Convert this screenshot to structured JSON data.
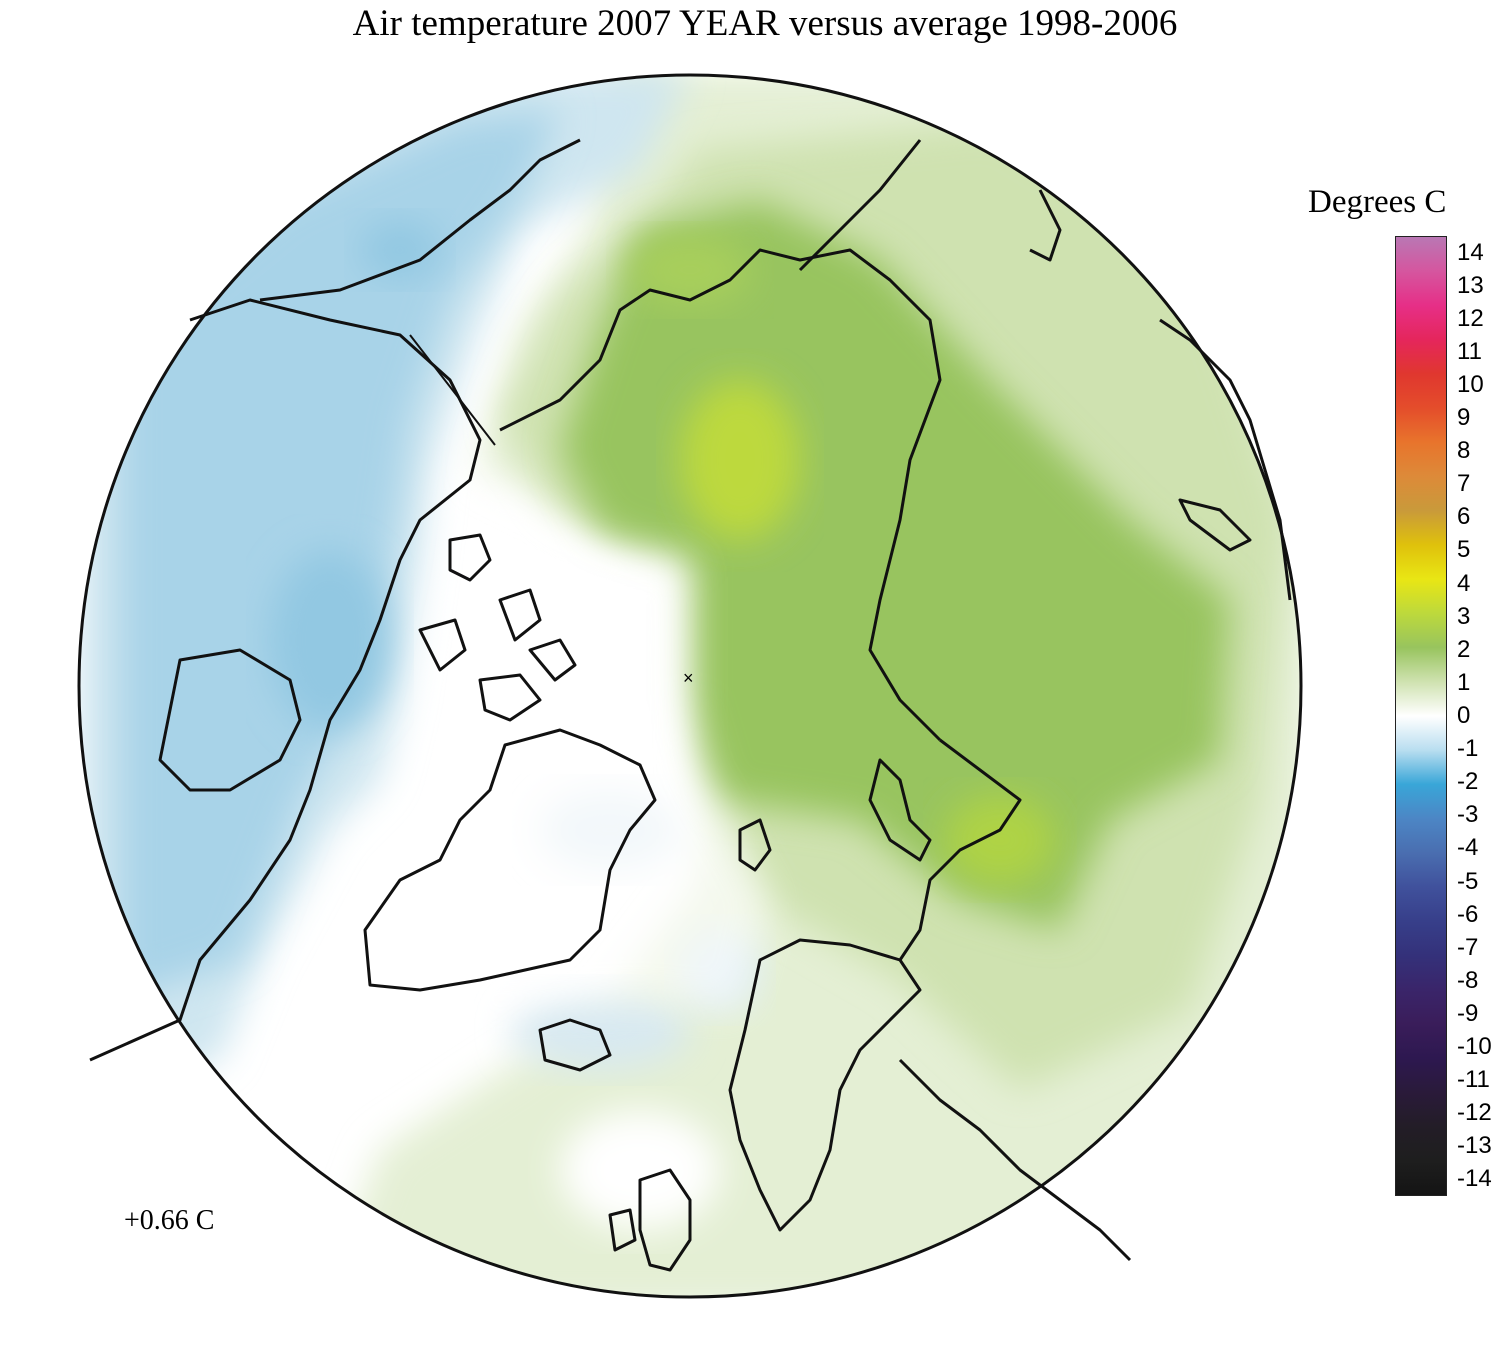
{
  "title": "Air temperature 2007 YEAR versus average 1998-2006",
  "legend": {
    "title": "Degrees C",
    "ticks": [
      "14",
      "13",
      "12",
      "11",
      "10",
      "9",
      "8",
      "7",
      "6",
      "5",
      "4",
      "3",
      "2",
      "1",
      "0",
      "-1",
      "-2",
      "-3",
      "-4",
      "-5",
      "-6",
      "-7",
      "-8",
      "-9",
      "-10",
      "-11",
      "-12",
      "-13",
      "-14"
    ],
    "colors": [
      "#b977b4",
      "#d5569f",
      "#e62f87",
      "#e5265c",
      "#e0372f",
      "#e44d2b",
      "#e8742c",
      "#dd8a39",
      "#c99a3a",
      "#dfc10c",
      "#e9e614",
      "#bdd93c",
      "#98c45e",
      "#cfe2b0",
      "#ffffff",
      "#b9def0",
      "#39a6d8",
      "#4c86c5",
      "#4a6eb0",
      "#40519c",
      "#373f8a",
      "#34317a",
      "#3a256a",
      "#3a1d5a",
      "#2d1850",
      "#2a1a3a",
      "#231d27",
      "#1e1e1e",
      "#141414"
    ]
  },
  "mean_anomaly": "+0.66 C",
  "map": {
    "description": "Northern hemisphere polar stereographic projection",
    "anomaly_colors": {
      "strong_warm": "#bdd93c",
      "warm": "#98c45e",
      "mild_warm": "#cfe2b0",
      "neutral": "#ffffff",
      "mild_cold": "#dbeaf2",
      "cold": "#a8d3e8"
    }
  }
}
